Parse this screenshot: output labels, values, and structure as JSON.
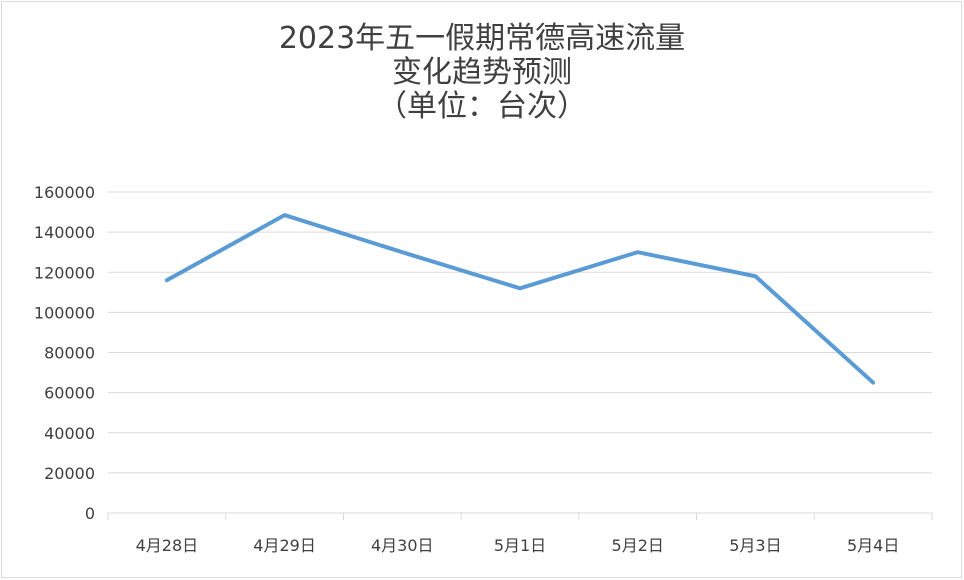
{
  "chart_data": {
    "type": "line",
    "title_lines": [
      "2023年五一假期常德高速流量",
      "变化趋势预测",
      "（单位：台次）"
    ],
    "categories": [
      "4月28日",
      "4月29日",
      "4月30日",
      "5月1日",
      "5月2日",
      "5月3日",
      "5月4日"
    ],
    "y_ticks": [
      "160000",
      "140000",
      "120000",
      "100000",
      "80000",
      "60000",
      "40000",
      "20000",
      "0"
    ],
    "series": [
      {
        "values": [
          116000,
          148500,
          130000,
          112000,
          130000,
          118000,
          65000
        ]
      }
    ],
    "ylim": [
      0,
      160000
    ],
    "grid": true,
    "legend": "none",
    "line_color": "#5b9bd5",
    "grid_color": "#d9d9d9"
  }
}
